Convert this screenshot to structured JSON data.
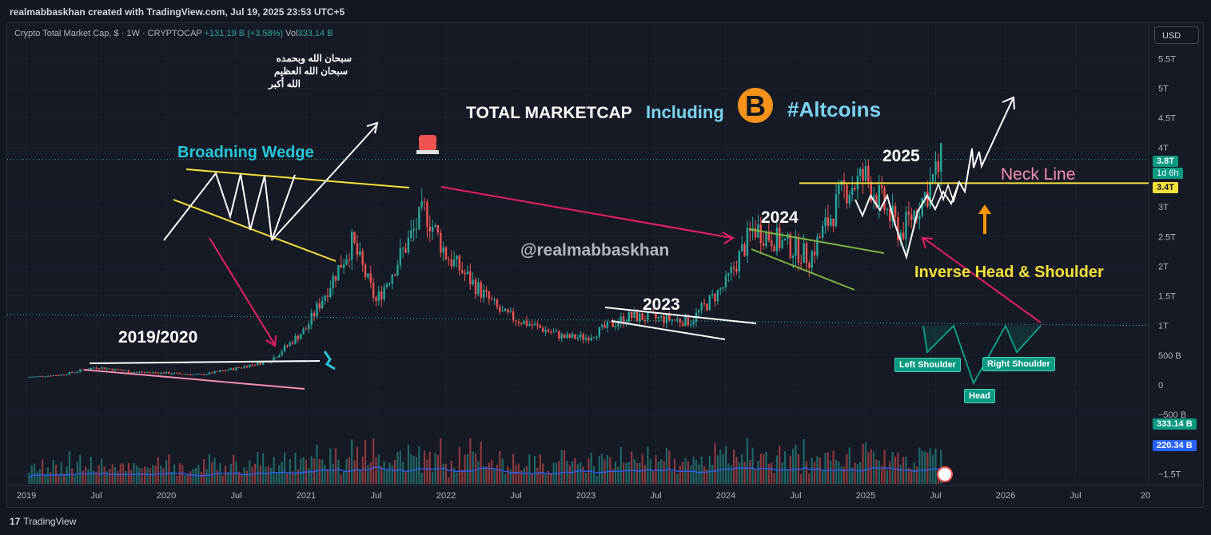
{
  "header": {
    "attribution": "realmabbaskhan created with TradingView.com, Jul 19, 2025 23:53 UTC+5"
  },
  "legend": {
    "symbol": "Crypto Total Market Cap, $ · 1W · CRYPTOCAP",
    "change": "+131.19 B (+3.58%)",
    "vol_label": "Vol",
    "vol_value": "333.14 B"
  },
  "currency_button": "USD",
  "annotations": {
    "arabic_line1": "سبحان الله وبحمده",
    "arabic_line2": "سبحان الله العظيم",
    "arabic_line3": "الله أكبر",
    "title_main": "TOTAL MARKETCAP",
    "title_including": "Including",
    "title_altcoins": "#Altcoins",
    "broadening_wedge": "Broadning Wedge",
    "year_2019": "2019/2020",
    "year_2023": "2023",
    "year_2024": "2024",
    "year_2025": "2025",
    "neck_line": "Neck Line",
    "watermark": "@realmabbaskhan",
    "pattern": "Inverse Head & Shoulder",
    "left_shoulder": "Left Shoulder",
    "head": "Head",
    "right_shoulder": "Right Shoulder"
  },
  "price_tags": {
    "current": "3.8T",
    "countdown": "1d 6h",
    "neckline": "3.4T",
    "volume": "333.14 B",
    "volume_ma": "220.34 B"
  },
  "colors": {
    "up": "#26a69a",
    "down": "#ef5350",
    "neckline": "#f7e03a",
    "wedge": "#f7e03a",
    "pink": "#e91e63",
    "vol_ma": "#2962ff"
  },
  "footer": {
    "brand": "TradingView"
  },
  "chart_data": {
    "type": "candlestick",
    "y_axis_unit": "USD",
    "y_ticks": [
      "5.5T",
      "5T",
      "4.5T",
      "4T",
      "3T",
      "2.5T",
      "2T",
      "1.5T",
      "1T",
      "500 B",
      "0",
      "−500 B",
      "−1.5T"
    ],
    "x_ticks": [
      "2019",
      "Jul",
      "2020",
      "Jul",
      "2021",
      "Jul",
      "2022",
      "Jul",
      "2023",
      "Jul",
      "2024",
      "Jul",
      "2025",
      "Jul",
      "2026",
      "Jul",
      "20"
    ],
    "ylim": [
      -1.7,
      5.8
    ],
    "series_close_monthly": [
      {
        "t": 2019.0,
        "v": 0.13
      },
      {
        "t": 2019.25,
        "v": 0.17
      },
      {
        "t": 2019.5,
        "v": 0.3
      },
      {
        "t": 2019.75,
        "v": 0.22
      },
      {
        "t": 2020.0,
        "v": 0.2
      },
      {
        "t": 2020.25,
        "v": 0.17
      },
      {
        "t": 2020.5,
        "v": 0.28
      },
      {
        "t": 2020.75,
        "v": 0.42
      },
      {
        "t": 2021.0,
        "v": 0.95
      },
      {
        "t": 2021.33,
        "v": 2.4
      },
      {
        "t": 2021.5,
        "v": 1.4
      },
      {
        "t": 2021.85,
        "v": 2.95
      },
      {
        "t": 2022.0,
        "v": 2.2
      },
      {
        "t": 2022.4,
        "v": 1.2
      },
      {
        "t": 2022.85,
        "v": 0.8
      },
      {
        "t": 2023.0,
        "v": 0.8
      },
      {
        "t": 2023.3,
        "v": 1.15
      },
      {
        "t": 2023.75,
        "v": 1.08
      },
      {
        "t": 2024.0,
        "v": 1.7
      },
      {
        "t": 2024.2,
        "v": 2.65
      },
      {
        "t": 2024.6,
        "v": 2.15
      },
      {
        "t": 2024.85,
        "v": 3.3
      },
      {
        "t": 2025.0,
        "v": 3.5
      },
      {
        "t": 2025.25,
        "v": 2.55
      },
      {
        "t": 2025.45,
        "v": 3.3
      },
      {
        "t": 2025.55,
        "v": 3.8
      }
    ],
    "neckline": 3.4,
    "current_price": 3.8,
    "volume_current": 333.14,
    "volume_ma": 220.34
  }
}
